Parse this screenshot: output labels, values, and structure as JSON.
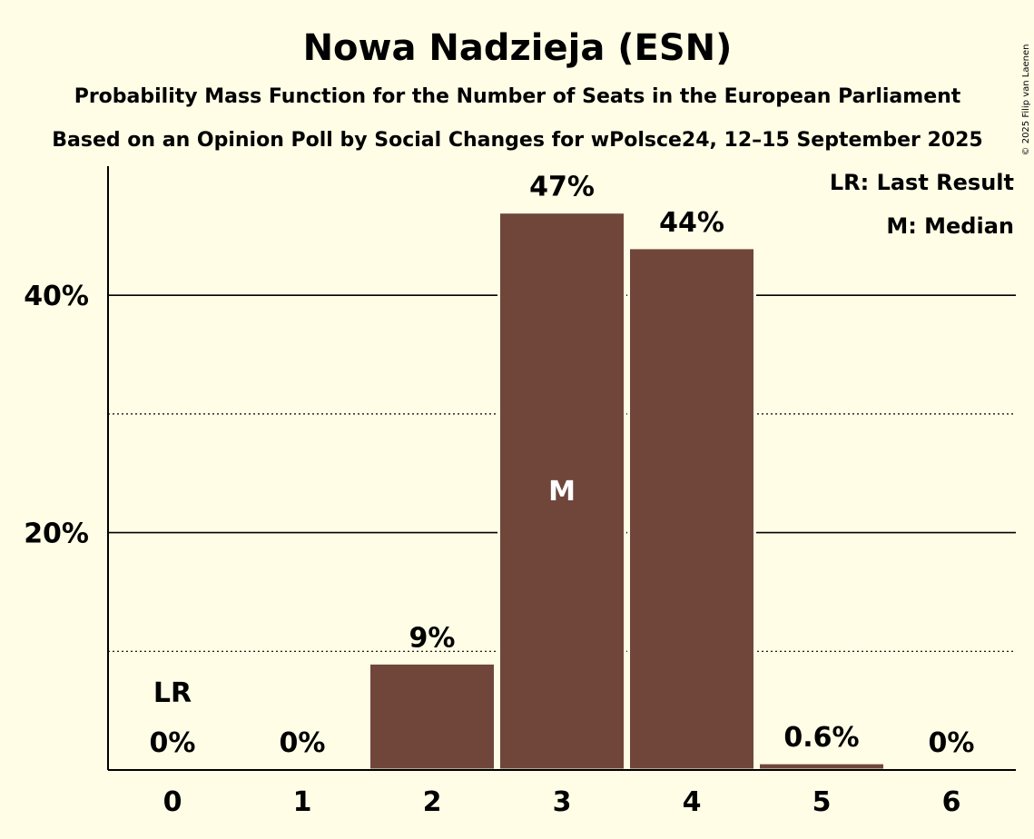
{
  "chart_data": {
    "type": "bar",
    "title": "Nowa Nadzieja (ESN)",
    "subtitle1": "Probability Mass Function for the Number of Seats in the European Parliament",
    "subtitle2": "Based on an Opinion Poll by Social Changes for wPolsce24, 12–15 September 2025",
    "categories": [
      "0",
      "1",
      "2",
      "3",
      "4",
      "5",
      "6"
    ],
    "values": [
      0,
      0,
      9,
      47,
      44,
      0.6,
      0
    ],
    "value_labels": [
      "0%",
      "0%",
      "9%",
      "47%",
      "44%",
      "0.6%",
      "0%"
    ],
    "ylim": [
      0,
      50
    ],
    "yticks_major": [
      20,
      40
    ],
    "ytick_labels": [
      "20%",
      "40%"
    ],
    "yticks_minor": [
      10,
      30
    ],
    "last_result_index": 0,
    "last_result_marker": "LR",
    "median_index": 3,
    "median_marker": "M",
    "legend": [
      "LR: Last Result",
      "M: Median"
    ],
    "bar_color": "#70463b",
    "background_color": "#fffde6",
    "copyright": "© 2025 Filip van Laenen"
  }
}
